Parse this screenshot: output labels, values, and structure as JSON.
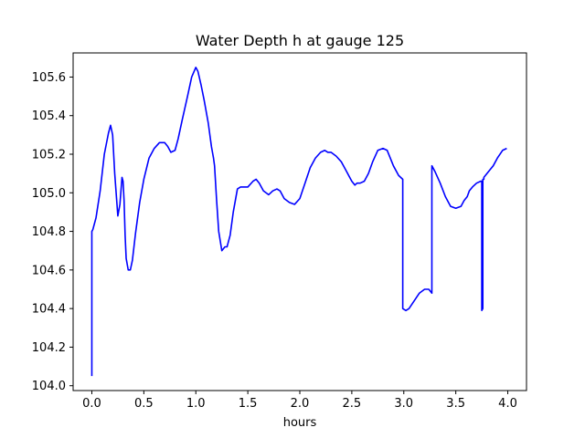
{
  "chart_data": {
    "type": "line",
    "title": "Water Depth h at gauge 125",
    "xlabel": "hours",
    "ylabel": "",
    "xlim": [
      -0.18,
      4.18
    ],
    "ylim": [
      103.975,
      105.725
    ],
    "xticks": [
      0.0,
      0.5,
      1.0,
      1.5,
      2.0,
      2.5,
      3.0,
      3.5,
      4.0
    ],
    "xtick_labels": [
      "0.0",
      "0.5",
      "1.0",
      "1.5",
      "2.0",
      "2.5",
      "3.0",
      "3.5",
      "4.0"
    ],
    "yticks": [
      104.0,
      104.2,
      104.4,
      104.6,
      104.8,
      105.0,
      105.2,
      105.4,
      105.6
    ],
    "ytick_labels": [
      "104.0",
      "104.2",
      "104.4",
      "104.6",
      "104.8",
      "105.0",
      "105.2",
      "105.4",
      "105.6"
    ],
    "grid": false,
    "colors": {
      "line": "#0000ff"
    },
    "series": [
      {
        "x": [
          0.0,
          0.0,
          0.01,
          0.04,
          0.08,
          0.12,
          0.16,
          0.18,
          0.2,
          0.22,
          0.25,
          0.27,
          0.29,
          0.3,
          0.31,
          0.32,
          0.33,
          0.35,
          0.37,
          0.39,
          0.42,
          0.46,
          0.5,
          0.55,
          0.6,
          0.65,
          0.7,
          0.73,
          0.76,
          0.8,
          0.83,
          0.87,
          0.92,
          0.96,
          1.0,
          1.02,
          1.05,
          1.08,
          1.12,
          1.15,
          1.17,
          1.18,
          1.2,
          1.22,
          1.25,
          1.28,
          1.3,
          1.33,
          1.36,
          1.4,
          1.43,
          1.47,
          1.5,
          1.55,
          1.58,
          1.61,
          1.65,
          1.7,
          1.74,
          1.78,
          1.81,
          1.85,
          1.9,
          1.95,
          2.0,
          2.05,
          2.1,
          2.15,
          2.2,
          2.24,
          2.27,
          2.3,
          2.35,
          2.4,
          2.45,
          2.5,
          2.53,
          2.55,
          2.58,
          2.62,
          2.66,
          2.7,
          2.75,
          2.8,
          2.84,
          2.87,
          2.9,
          2.95,
          2.99,
          2.99,
          3.02,
          3.05,
          3.1,
          3.15,
          3.2,
          3.24,
          3.27,
          3.27,
          3.27,
          3.3,
          3.35,
          3.4,
          3.45,
          3.5,
          3.55,
          3.58,
          3.61,
          3.63,
          3.66,
          3.7,
          3.74,
          3.75,
          3.75,
          3.76,
          3.76,
          3.77,
          3.77,
          3.8,
          3.83,
          3.86,
          3.9,
          3.95,
          3.99
        ],
        "y": [
          104.05,
          104.8,
          104.81,
          104.87,
          105.01,
          105.2,
          105.31,
          105.35,
          105.3,
          105.1,
          104.88,
          104.94,
          105.08,
          105.06,
          104.96,
          104.78,
          104.66,
          104.6,
          104.6,
          104.65,
          104.79,
          104.95,
          105.07,
          105.18,
          105.23,
          105.26,
          105.26,
          105.24,
          105.21,
          105.22,
          105.28,
          105.38,
          105.5,
          105.6,
          105.65,
          105.63,
          105.56,
          105.48,
          105.36,
          105.24,
          105.18,
          105.14,
          104.96,
          104.8,
          104.7,
          104.72,
          104.72,
          104.78,
          104.9,
          105.02,
          105.03,
          105.03,
          105.03,
          105.06,
          105.07,
          105.05,
          105.01,
          104.99,
          105.01,
          105.02,
          105.01,
          104.97,
          104.95,
          104.94,
          104.97,
          105.05,
          105.13,
          105.18,
          105.21,
          105.22,
          105.21,
          105.21,
          105.19,
          105.16,
          105.11,
          105.06,
          105.04,
          105.05,
          105.05,
          105.06,
          105.1,
          105.16,
          105.22,
          105.23,
          105.22,
          105.18,
          105.14,
          105.09,
          105.07,
          104.4,
          104.39,
          104.4,
          104.44,
          104.48,
          104.5,
          104.5,
          104.48,
          105.14,
          105.14,
          105.11,
          105.05,
          104.98,
          104.93,
          104.92,
          104.93,
          104.96,
          104.98,
          105.01,
          105.03,
          105.05,
          105.06,
          105.06,
          104.39,
          104.4,
          105.07,
          105.07,
          105.08,
          105.1,
          105.12,
          105.14,
          105.18,
          105.22,
          105.23
        ]
      }
    ]
  }
}
